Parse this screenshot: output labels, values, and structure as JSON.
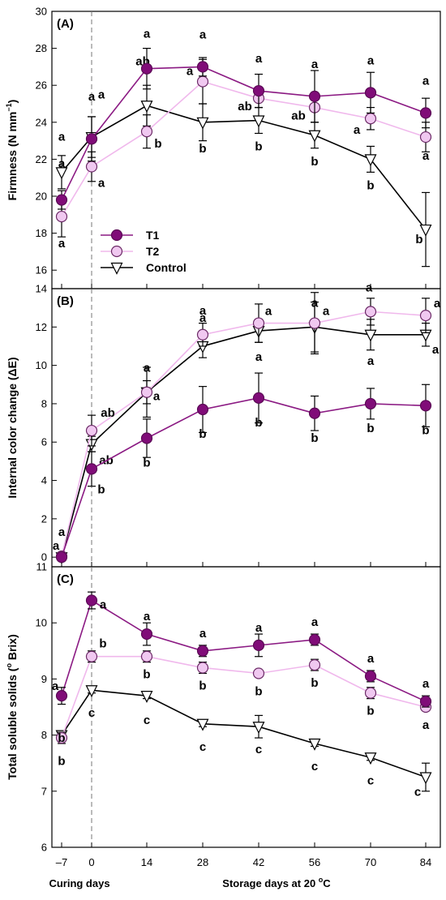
{
  "x_axis": {
    "tick_labels": [
      "–7",
      "0",
      "14",
      "28",
      "42",
      "56",
      "70",
      "84"
    ],
    "curing_label": "Curing days",
    "storage_label_prefix": "Storage days at 20 ",
    "storage_label_sup": "o",
    "storage_label_suffix": "C"
  },
  "legend": {
    "entries": [
      {
        "label": "T1",
        "series": "T1"
      },
      {
        "label": "T2",
        "series": "T2"
      },
      {
        "label": "Control",
        "series": "Control"
      }
    ]
  },
  "styles": {
    "T1": {
      "marker": "circle",
      "fill": "#800c78",
      "stroke": "#5a0a55",
      "line": "#8b1a83"
    },
    "T2": {
      "marker": "circle",
      "fill": "#f0c8f0",
      "stroke": "#6b2a66",
      "line": "#f0b8ec"
    },
    "Control": {
      "marker": "triangle-down",
      "fill": "#ffffff",
      "stroke": "#000000",
      "line": "#000000"
    }
  },
  "chart_data": [
    {
      "type": "line",
      "panel_label": "(A)",
      "ylabel": "Firmness (N mm",
      "ylabel_sup": "−1",
      "ylabel_close": ")",
      "ylim": [
        15,
        30
      ],
      "yticks": [
        16,
        18,
        20,
        22,
        24,
        26,
        28,
        30
      ],
      "x": [
        -7,
        0,
        14,
        28,
        42,
        56,
        70,
        84
      ],
      "series": [
        {
          "name": "T1",
          "values": [
            19.8,
            23.1,
            26.9,
            27.0,
            25.7,
            25.4,
            25.6,
            24.5
          ],
          "errors": [
            0.5,
            1.2,
            1.1,
            0.5,
            0.9,
            1.4,
            1.1,
            0.8
          ],
          "letters": [
            "a",
            "a",
            "a",
            "a",
            "a",
            "a",
            "a",
            "a"
          ]
        },
        {
          "name": "T2",
          "values": [
            18.9,
            21.6,
            23.5,
            26.2,
            25.3,
            24.8,
            24.2,
            23.2
          ],
          "errors": [
            1.1,
            0.8,
            0.9,
            1.2,
            0.5,
            0.8,
            0.6,
            0.8
          ],
          "letters": [
            "a",
            "a",
            "b",
            "a",
            "ab",
            "ab",
            "a",
            "a"
          ]
        },
        {
          "name": "Control",
          "values": [
            21.3,
            23.2,
            24.9,
            24.0,
            24.1,
            23.3,
            22.0,
            18.2
          ],
          "errors": [
            0.9,
            1.1,
            1.1,
            1.0,
            0.7,
            0.7,
            0.7,
            2.0
          ],
          "letters": [
            "a",
            "a",
            "ab",
            "b",
            "b",
            "b",
            "b",
            "b"
          ]
        }
      ]
    },
    {
      "type": "line",
      "panel_label": "(B)",
      "ylabel": "Internal color change (",
      "ylabel_sup": "",
      "ylabel_close": "ΔE)",
      "ylim": [
        -0.5,
        14
      ],
      "yticks": [
        0,
        2,
        4,
        6,
        8,
        10,
        12,
        14
      ],
      "x": [
        -7,
        0,
        14,
        28,
        42,
        56,
        70,
        84
      ],
      "series": [
        {
          "name": "T1",
          "values": [
            0.0,
            4.6,
            6.2,
            7.7,
            8.3,
            7.5,
            8.0,
            7.9
          ],
          "errors": [
            0.15,
            0.9,
            1.0,
            1.2,
            1.3,
            0.9,
            0.8,
            1.1
          ],
          "letters": [
            "a",
            "b",
            "b",
            "b",
            "b",
            "b",
            "b",
            "b"
          ]
        },
        {
          "name": "T2",
          "values": [
            0.05,
            6.6,
            8.6,
            11.6,
            12.2,
            12.2,
            12.8,
            12.6
          ],
          "errors": [
            0.15,
            0.8,
            0.6,
            0.6,
            1.0,
            1.6,
            0.7,
            0.9
          ],
          "letters": [
            "a",
            "ab",
            "a",
            "a",
            "a",
            "a",
            "a",
            "a"
          ]
        },
        {
          "name": "Control",
          "values": [
            0.0,
            5.9,
            8.6,
            11.0,
            11.8,
            12.0,
            11.6,
            11.6
          ],
          "errors": [
            0.15,
            0.4,
            1.3,
            0.6,
            0.6,
            1.3,
            0.8,
            0.6
          ],
          "letters": [
            "a",
            "ab",
            "a",
            "a",
            "a",
            "a",
            "a",
            "a"
          ]
        }
      ]
    },
    {
      "type": "line",
      "panel_label": "(C)",
      "ylabel": "Total soluble solids (",
      "ylabel_sup": "o",
      "ylabel_close": " Brix)",
      "ylim": [
        6,
        11
      ],
      "yticks": [
        6,
        7,
        8,
        9,
        10,
        11
      ],
      "x": [
        -7,
        0,
        14,
        28,
        42,
        56,
        70,
        84
      ],
      "series": [
        {
          "name": "T1",
          "values": [
            8.7,
            10.4,
            9.8,
            9.5,
            9.6,
            9.7,
            9.05,
            8.6
          ],
          "errors": [
            0.15,
            0.15,
            0.2,
            0.1,
            0.2,
            0.1,
            0.1,
            0.1
          ],
          "letters": [
            "a",
            "a",
            "a",
            "a",
            "a",
            "a",
            "a",
            "a"
          ]
        },
        {
          "name": "T2",
          "values": [
            7.95,
            9.4,
            9.4,
            9.2,
            9.1,
            9.25,
            8.75,
            8.5
          ],
          "errors": [
            0.1,
            0.1,
            0.1,
            0.1,
            0.05,
            0.1,
            0.1,
            0.05
          ],
          "letters": [
            "b",
            "b",
            "b",
            "b",
            "b",
            "b",
            "b",
            "a"
          ]
        },
        {
          "name": "Control",
          "values": [
            8.0,
            8.8,
            8.7,
            8.2,
            8.15,
            7.85,
            7.6,
            7.25
          ],
          "errors": [
            0.05,
            0.05,
            0.05,
            0.05,
            0.2,
            0.05,
            0.05,
            0.25
          ],
          "letters": [
            "b",
            "c",
            "c",
            "c",
            "c",
            "c",
            "c",
            "c"
          ]
        }
      ]
    }
  ]
}
